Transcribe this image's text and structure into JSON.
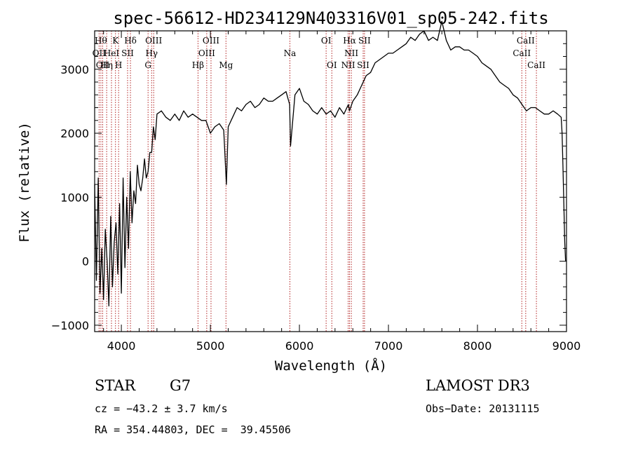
{
  "chart_data": {
    "type": "line",
    "title": "spec-56612-HD234129N403316V01_sp05-242.fits",
    "xlabel": "Wavelength (Å)",
    "ylabel": "Flux (relative)",
    "xlim": [
      3700,
      9000
    ],
    "ylim": [
      -1100,
      3600
    ],
    "xticks": [
      4000,
      5000,
      6000,
      7000,
      8000,
      9000
    ],
    "yticks": [
      -1000,
      0,
      1000,
      2000,
      3000
    ],
    "grid": false,
    "series": [
      {
        "name": "flux",
        "x": [
          3700,
          3720,
          3740,
          3760,
          3780,
          3800,
          3820,
          3840,
          3860,
          3880,
          3900,
          3920,
          3940,
          3960,
          3980,
          4000,
          4020,
          4040,
          4060,
          4080,
          4100,
          4120,
          4140,
          4160,
          4180,
          4200,
          4220,
          4240,
          4260,
          4280,
          4300,
          4320,
          4340,
          4360,
          4380,
          4400,
          4450,
          4500,
          4550,
          4600,
          4650,
          4700,
          4750,
          4800,
          4850,
          4900,
          4950,
          5000,
          5050,
          5100,
          5150,
          5180,
          5200,
          5250,
          5300,
          5350,
          5400,
          5450,
          5500,
          5550,
          5600,
          5650,
          5700,
          5750,
          5800,
          5850,
          5890,
          5900,
          5950,
          6000,
          6050,
          6100,
          6150,
          6200,
          6250,
          6300,
          6350,
          6400,
          6450,
          6500,
          6550,
          6563,
          6600,
          6650,
          6700,
          6750,
          6800,
          6850,
          6900,
          6950,
          7000,
          7050,
          7100,
          7150,
          7200,
          7250,
          7300,
          7350,
          7400,
          7450,
          7500,
          7550,
          7600,
          7650,
          7700,
          7750,
          7800,
          7850,
          7900,
          7950,
          8000,
          8050,
          8100,
          8150,
          8200,
          8250,
          8300,
          8350,
          8400,
          8450,
          8500,
          8550,
          8600,
          8650,
          8700,
          8750,
          8800,
          8850,
          8900,
          8940,
          8950,
          8960,
          8970,
          8980,
          8990
        ],
        "y": [
          1200,
          -300,
          1300,
          -500,
          200,
          -600,
          500,
          0,
          -700,
          700,
          -400,
          300,
          600,
          -200,
          900,
          -500,
          1300,
          -100,
          1000,
          200,
          1400,
          600,
          1100,
          900,
          1500,
          1200,
          1100,
          1300,
          1600,
          1300,
          1400,
          1700,
          1700,
          2100,
          1900,
          2300,
          2350,
          2250,
          2200,
          2300,
          2200,
          2350,
          2250,
          2300,
          2250,
          2200,
          2200,
          2000,
          2100,
          2150,
          2050,
          1200,
          2100,
          2250,
          2400,
          2350,
          2450,
          2500,
          2400,
          2450,
          2550,
          2500,
          2500,
          2550,
          2600,
          2650,
          2450,
          1800,
          2600,
          2700,
          2500,
          2450,
          2350,
          2300,
          2400,
          2300,
          2350,
          2250,
          2400,
          2300,
          2450,
          2350,
          2500,
          2600,
          2750,
          2900,
          2950,
          3100,
          3150,
          3200,
          3250,
          3250,
          3300,
          3350,
          3400,
          3500,
          3450,
          3550,
          3600,
          3450,
          3500,
          3450,
          3750,
          3450,
          3300,
          3350,
          3350,
          3300,
          3300,
          3250,
          3200,
          3100,
          3050,
          3000,
          2900,
          2800,
          2750,
          2700,
          2600,
          2550,
          2450,
          2350,
          2400,
          2400,
          2350,
          2300,
          2300,
          2350,
          2300,
          2250,
          2000,
          1500,
          900,
          300,
          0
        ]
      }
    ],
    "lines": [
      {
        "wl": 3750,
        "label": "OII",
        "row": 2
      },
      {
        "wl": 3770,
        "label": "Hθ",
        "row": 1
      },
      {
        "wl": 3790,
        "label": "OII",
        "row": 3
      },
      {
        "wl": 3835,
        "label": "Hη",
        "row": 3
      },
      {
        "wl": 3889,
        "label": "HeI",
        "row": 2
      },
      {
        "wl": 3934,
        "label": "K",
        "row": 1
      },
      {
        "wl": 3969,
        "label": "H",
        "row": 3
      },
      {
        "wl": 4070,
        "label": "SII",
        "row": 2
      },
      {
        "wl": 4102,
        "label": "Hδ",
        "row": 1
      },
      {
        "wl": 4300,
        "label": "G",
        "row": 3
      },
      {
        "wl": 4340,
        "label": "Hγ",
        "row": 2
      },
      {
        "wl": 4363,
        "label": "OIII",
        "row": 1
      },
      {
        "wl": 4861,
        "label": "Hβ",
        "row": 3
      },
      {
        "wl": 4959,
        "label": "OIII",
        "row": 2
      },
      {
        "wl": 5007,
        "label": "OIII",
        "row": 1
      },
      {
        "wl": 5175,
        "label": "Mg",
        "row": 3
      },
      {
        "wl": 5893,
        "label": "Na",
        "row": 2
      },
      {
        "wl": 6300,
        "label": "OI",
        "row": 1
      },
      {
        "wl": 6364,
        "label": "OI",
        "row": 3
      },
      {
        "wl": 6548,
        "label": "NII",
        "row": 3
      },
      {
        "wl": 6563,
        "label": "Hα",
        "row": 1
      },
      {
        "wl": 6583,
        "label": "NII",
        "row": 2
      },
      {
        "wl": 6716,
        "label": "SII",
        "row": 3
      },
      {
        "wl": 6731,
        "label": "SII",
        "row": 1
      },
      {
        "wl": 8498,
        "label": "CaII",
        "row": 2
      },
      {
        "wl": 8542,
        "label": "CaII",
        "row": 1
      },
      {
        "wl": 8662,
        "label": "CaII",
        "row": 3
      }
    ]
  },
  "info": {
    "class_label": "STAR",
    "subclass": "G7",
    "survey": "LAMOST DR3",
    "cz": "cz = −43.2 ± 3.7 km/s",
    "obs_date": "Obs−Date: 20131115",
    "coords": "RA = 354.44803, DEC =  39.45506"
  },
  "colors": {
    "line_marker": "#b22222",
    "spectrum": "#000000"
  }
}
